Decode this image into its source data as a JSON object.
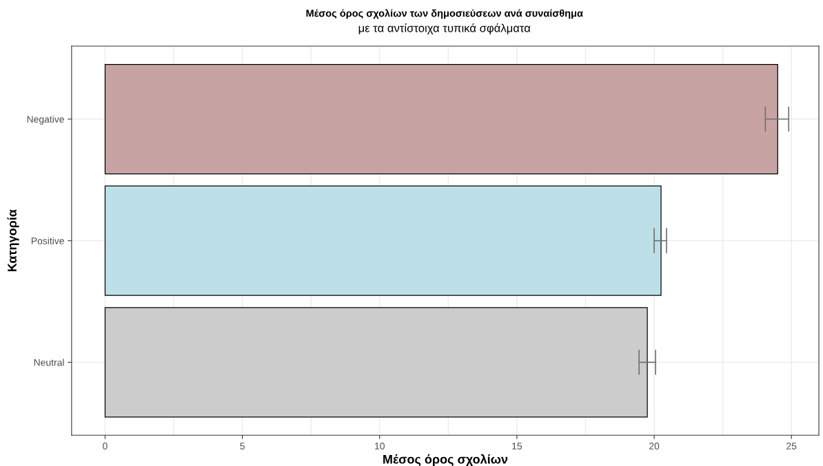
{
  "chart_data": {
    "type": "bar",
    "orientation": "horizontal",
    "title": "Μέσος όρος σχολίων των δημοσιεύσεων ανά συναίσθημα",
    "subtitle": "με τα αντίστοιχα τυπικά σφάλματα",
    "xlabel": "Μέσος όρος σχολίων",
    "ylabel": "Κατηγορία",
    "categories": [
      "Negative",
      "Positive",
      "Neutral"
    ],
    "values": [
      24.5,
      20.25,
      19.75
    ],
    "colors": [
      "#c8a3a4",
      "#bddfe8",
      "#cccccc"
    ],
    "errors": [
      [
        24.05,
        24.9
      ],
      [
        20.0,
        20.45
      ],
      [
        19.45,
        20.05
      ]
    ],
    "xlim": [
      -1.22,
      26.0
    ],
    "xticks": [
      0,
      5,
      10,
      15,
      20,
      25
    ],
    "grid": true,
    "legend": false
  }
}
